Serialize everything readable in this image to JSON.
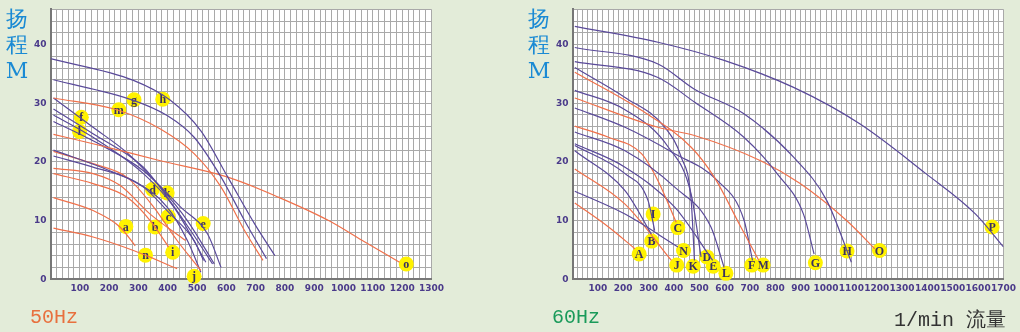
{
  "chart_data": [
    {
      "type": "line",
      "title": "50Hz",
      "ylabel": "扬程M",
      "grid": true,
      "xlim": [
        0,
        1300
      ],
      "ylim": [
        0,
        46
      ],
      "xticks": [
        {
          "value": 0,
          "label": null
        },
        {
          "value": 20,
          "label": null
        },
        {
          "value": 40,
          "label": null
        },
        {
          "value": 60,
          "label": null
        },
        {
          "value": 80,
          "label": null
        },
        100,
        {
          "value": 120,
          "label": null
        },
        {
          "value": 140,
          "label": null
        },
        {
          "value": 160,
          "label": null
        },
        {
          "value": 180,
          "label": null
        },
        200,
        {
          "value": 220,
          "label": null
        },
        {
          "value": 240,
          "label": null
        },
        {
          "value": 260,
          "label": null
        },
        {
          "value": 280,
          "label": null
        },
        300,
        {
          "value": 320,
          "label": null
        },
        {
          "value": 340,
          "label": null
        },
        {
          "value": 360,
          "label": null
        },
        {
          "value": 380,
          "label": null
        },
        400,
        {
          "value": 420,
          "label": null
        },
        {
          "value": 440,
          "label": null
        },
        {
          "value": 460,
          "label": null
        },
        {
          "value": 480,
          "label": null
        },
        500,
        {
          "value": 520,
          "label": null
        },
        {
          "value": 540,
          "label": null
        },
        {
          "value": 560,
          "label": null
        },
        {
          "value": 580,
          "label": null
        },
        600,
        {
          "value": 620,
          "label": null
        },
        {
          "value": 640,
          "label": null
        },
        {
          "value": 660,
          "label": null
        },
        {
          "value": 680,
          "label": null
        },
        700,
        {
          "value": 720,
          "label": null
        },
        {
          "value": 740,
          "label": null
        },
        {
          "value": 760,
          "label": null
        },
        {
          "value": 780,
          "label": null
        },
        800,
        {
          "value": 820,
          "label": null
        },
        {
          "value": 840,
          "label": null
        },
        {
          "value": 860,
          "label": null
        },
        {
          "value": 880,
          "label": null
        },
        900,
        {
          "value": 920,
          "label": null
        },
        {
          "value": 940,
          "label": null
        },
        {
          "value": 960,
          "label": null
        },
        {
          "value": 980,
          "label": null
        },
        1000,
        {
          "value": 1020,
          "label": null
        },
        {
          "value": 1040,
          "label": null
        },
        {
          "value": 1060,
          "label": null
        },
        {
          "value": 1080,
          "label": null
        },
        1100,
        {
          "value": 1120,
          "label": null
        },
        {
          "value": 1140,
          "label": null
        },
        {
          "value": 1160,
          "label": null
        },
        {
          "value": 1180,
          "label": null
        },
        1200,
        {
          "value": 1220,
          "label": null
        },
        {
          "value": 1240,
          "label": null
        },
        {
          "value": 1260,
          "label": null
        },
        {
          "value": 1280,
          "label": null
        },
        1300
      ],
      "yticks": [
        0,
        {
          "value": 2,
          "label": null
        },
        {
          "value": 4,
          "label": null
        },
        {
          "value": 6,
          "label": null
        },
        {
          "value": 8,
          "label": null
        },
        10,
        {
          "value": 12,
          "label": null
        },
        {
          "value": 14,
          "label": null
        },
        {
          "value": 16,
          "label": null
        },
        {
          "value": 18,
          "label": null
        },
        20,
        {
          "value": 22,
          "label": null
        },
        {
          "value": 24,
          "label": null
        },
        {
          "value": 26,
          "label": null
        },
        {
          "value": 28,
          "label": null
        },
        30,
        {
          "value": 32,
          "label": null
        },
        {
          "value": 34,
          "label": null
        },
        {
          "value": 36,
          "label": null
        },
        {
          "value": 38,
          "label": null
        },
        40,
        {
          "value": 42,
          "label": null
        },
        {
          "value": 44,
          "label": null
        },
        {
          "value": 46,
          "label": null
        }
      ],
      "series": [
        {
          "color": "#5a4a9a",
          "x": [
            0,
            283,
            409,
            513,
            605,
            697,
            766
          ],
          "values": [
            37.6,
            33.9,
            30.5,
            25.3,
            17.4,
            9.4,
            4.0
          ]
        },
        {
          "color": "#5a4a9a",
          "x": [
            10,
            283,
            398,
            490,
            582,
            662,
            737
          ],
          "values": [
            34.0,
            30.5,
            27.9,
            24.2,
            17.4,
            10.0,
            3.5
          ]
        },
        {
          "color": "#f0704a",
          "x": [
            10,
            231,
            375,
            490,
            582,
            662,
            725
          ],
          "values": [
            30.9,
            28.8,
            25.6,
            21.4,
            15.7,
            8.3,
            3.2
          ]
        },
        {
          "color": "#f0704a",
          "x": [
            10,
            145,
            375,
            605,
            777,
            949,
            1064,
            1191
          ],
          "values": [
            24.7,
            23.1,
            20.2,
            17.4,
            14.0,
            10.0,
            6.6,
            2.9
          ]
        },
        {
          "color": "#5a4a9a",
          "x": [
            10,
            145,
            260,
            375,
            467,
            559
          ],
          "values": [
            30.9,
            25.9,
            21.6,
            15.7,
            10.0,
            2.6
          ]
        },
        {
          "color": "#5a4a9a",
          "x": [
            10,
            145,
            317,
            398,
            478,
            553
          ],
          "values": [
            29.0,
            24.8,
            19.1,
            14.0,
            8.3,
            2.6
          ]
        },
        {
          "color": "#5a4a9a",
          "x": [
            10,
            145,
            317,
            421,
            530
          ],
          "values": [
            28.0,
            24.2,
            18.0,
            12.3,
            2.9
          ]
        },
        {
          "color": "#5a4a9a",
          "x": [
            10,
            145,
            317,
            444,
            536,
            582
          ],
          "values": [
            26.9,
            23.6,
            18.5,
            12.3,
            7.7,
            2.0
          ]
        },
        {
          "color": "#5a4a9a",
          "x": [
            10,
            202,
            317,
            409,
            490,
            522
          ],
          "values": [
            22.0,
            18.5,
            15.7,
            11.1,
            6.6,
            3.2
          ]
        },
        {
          "color": "#f0704a",
          "x": [
            10,
            145,
            260,
            352,
            432,
            513
          ],
          "values": [
            21.8,
            19.7,
            17.4,
            12.3,
            6.6,
            1.5
          ]
        },
        {
          "color": "#5a4a9a",
          "x": [
            10,
            145,
            283,
            398,
            467,
            513
          ],
          "values": [
            21.0,
            19.1,
            16.8,
            12.3,
            6.6,
            1.2
          ]
        },
        {
          "color": "#f0704a",
          "x": [
            10,
            145,
            237,
            340,
            461
          ],
          "values": [
            18.9,
            18.0,
            16.0,
            11.1,
            6.6
          ]
        },
        {
          "color": "#f0704a",
          "x": [
            10,
            145,
            260,
            340,
            403
          ],
          "values": [
            18.0,
            16.3,
            14.0,
            10.0,
            5.5
          ]
        },
        {
          "color": "#f0704a",
          "x": [
            10,
            145,
            237,
            289
          ],
          "values": [
            13.9,
            11.7,
            8.9,
            5.7
          ]
        },
        {
          "color": "#f0704a",
          "x": [
            10,
            145,
            283,
            432
          ],
          "values": [
            8.7,
            7.2,
            4.9,
            1.8
          ]
        }
      ],
      "annotations": [
        {
          "text": "g",
          "x": 285,
          "y": 30.6
        },
        {
          "text": "h",
          "x": 383,
          "y": 30.7
        },
        {
          "text": "m",
          "x": 233,
          "y": 28.9
        },
        {
          "text": "f",
          "x": 105,
          "y": 27.6
        },
        {
          "text": "l",
          "x": 99,
          "y": 25.2
        },
        {
          "text": "d",
          "x": 348,
          "y": 15.3
        },
        {
          "text": "k",
          "x": 398,
          "y": 14.7
        },
        {
          "text": "c",
          "x": 402,
          "y": 10.7
        },
        {
          "text": "e",
          "x": 521,
          "y": 9.5
        },
        {
          "text": "a",
          "x": 257,
          "y": 9.0
        },
        {
          "text": "b",
          "x": 357,
          "y": 8.9
        },
        {
          "text": "i",
          "x": 417,
          "y": 4.6
        },
        {
          "text": "n",
          "x": 324,
          "y": 4.1
        },
        {
          "text": "j",
          "x": 490,
          "y": 0.5
        },
        {
          "text": "o",
          "x": 1214,
          "y": 2.6
        }
      ]
    },
    {
      "type": "line",
      "title": "60Hz",
      "ylabel": "扬程M",
      "xlabel": "1/min 流量",
      "grid": true,
      "xlim": [
        0,
        1700
      ],
      "ylim": [
        0,
        46
      ],
      "xticks": [
        {
          "value": 0,
          "label": null
        },
        {
          "value": 20,
          "label": null
        },
        {
          "value": 40,
          "label": null
        },
        {
          "value": 60,
          "label": null
        },
        {
          "value": 80,
          "label": null
        },
        100,
        {
          "value": 120,
          "label": null
        },
        {
          "value": 140,
          "label": null
        },
        {
          "value": 160,
          "label": null
        },
        {
          "value": 180,
          "label": null
        },
        200,
        {
          "value": 220,
          "label": null
        },
        {
          "value": 240,
          "label": null
        },
        {
          "value": 260,
          "label": null
        },
        {
          "value": 280,
          "label": null
        },
        300,
        {
          "value": 320,
          "label": null
        },
        {
          "value": 340,
          "label": null
        },
        {
          "value": 360,
          "label": null
        },
        {
          "value": 380,
          "label": null
        },
        400,
        {
          "value": 420,
          "label": null
        },
        {
          "value": 440,
          "label": null
        },
        {
          "value": 460,
          "label": null
        },
        {
          "value": 480,
          "label": null
        },
        500,
        {
          "value": 520,
          "label": null
        },
        {
          "value": 540,
          "label": null
        },
        {
          "value": 560,
          "label": null
        },
        {
          "value": 580,
          "label": null
        },
        600,
        {
          "value": 620,
          "label": null
        },
        {
          "value": 640,
          "label": null
        },
        {
          "value": 660,
          "label": null
        },
        {
          "value": 680,
          "label": null
        },
        700,
        {
          "value": 720,
          "label": null
        },
        {
          "value": 740,
          "label": null
        },
        {
          "value": 760,
          "label": null
        },
        {
          "value": 780,
          "label": null
        },
        800,
        {
          "value": 820,
          "label": null
        },
        {
          "value": 840,
          "label": null
        },
        {
          "value": 860,
          "label": null
        },
        {
          "value": 880,
          "label": null
        },
        900,
        {
          "value": 920,
          "label": null
        },
        {
          "value": 940,
          "label": null
        },
        {
          "value": 960,
          "label": null
        },
        {
          "value": 980,
          "label": null
        },
        1000,
        {
          "value": 1020,
          "label": null
        },
        {
          "value": 1040,
          "label": null
        },
        {
          "value": 1060,
          "label": null
        },
        {
          "value": 1080,
          "label": null
        },
        1100,
        {
          "value": 1120,
          "label": null
        },
        {
          "value": 1140,
          "label": null
        },
        {
          "value": 1160,
          "label": null
        },
        {
          "value": 1180,
          "label": null
        },
        1200,
        {
          "value": 1220,
          "label": null
        },
        {
          "value": 1240,
          "label": null
        },
        {
          "value": 1260,
          "label": null
        },
        {
          "value": 1280,
          "label": null
        },
        1300,
        {
          "value": 1320,
          "label": null
        },
        {
          "value": 1340,
          "label": null
        },
        {
          "value": 1360,
          "label": null
        },
        {
          "value": 1380,
          "label": null
        },
        1400,
        {
          "value": 1420,
          "label": null
        },
        {
          "value": 1440,
          "label": null
        },
        {
          "value": 1460,
          "label": null
        },
        {
          "value": 1480,
          "label": null
        },
        1500,
        {
          "value": 1520,
          "label": null
        },
        {
          "value": 1540,
          "label": null
        },
        {
          "value": 1560,
          "label": null
        },
        {
          "value": 1580,
          "label": null
        },
        1600,
        {
          "value": 1620,
          "label": null
        },
        {
          "value": 1640,
          "label": null
        },
        {
          "value": 1660,
          "label": null
        },
        {
          "value": 1680,
          "label": null
        },
        1700
      ],
      "yticks": [
        0,
        {
          "value": 2,
          "label": null
        },
        {
          "value": 4,
          "label": null
        },
        {
          "value": 6,
          "label": null
        },
        {
          "value": 8,
          "label": null
        },
        10,
        {
          "value": 12,
          "label": null
        },
        {
          "value": 14,
          "label": null
        },
        {
          "value": 16,
          "label": null
        },
        {
          "value": 18,
          "label": null
        },
        20,
        {
          "value": 22,
          "label": null
        },
        {
          "value": 24,
          "label": null
        },
        {
          "value": 26,
          "label": null
        },
        {
          "value": 28,
          "label": null
        },
        30,
        {
          "value": 32,
          "label": null
        },
        {
          "value": 34,
          "label": null
        },
        {
          "value": 36,
          "label": null
        },
        {
          "value": 38,
          "label": null
        },
        40,
        {
          "value": 42,
          "label": null
        },
        {
          "value": 44,
          "label": null
        },
        {
          "value": 46,
          "label": null
        }
      ],
      "series": [
        {
          "color": "#5a4a9a",
          "x": [
            9,
            337,
            598,
            872,
            1133,
            1394,
            1590,
            1700
          ],
          "values": [
            43.1,
            40.4,
            37.3,
            32.7,
            26.5,
            18.0,
            11.1,
            5.5
          ]
        },
        {
          "color": "#5a4a9a",
          "x": [
            9,
            337,
            481,
            676,
            872,
            1003,
            1100
          ],
          "values": [
            39.5,
            36.7,
            32.4,
            28.2,
            20.8,
            13.4,
            2.9
          ]
        },
        {
          "color": "#5a4a9a",
          "x": [
            9,
            337,
            481,
            676,
            807,
            911,
            953
          ],
          "values": [
            37.1,
            34.4,
            30.2,
            24.2,
            18.0,
            11.1,
            4.3
          ]
        },
        {
          "color": "#f0704a",
          "x": [
            9,
            337,
            481,
            742,
            898,
            1081,
            1192
          ],
          "values": [
            30.9,
            25.9,
            24.5,
            20.2,
            16.3,
            10.0,
            5.2
          ]
        },
        {
          "color": "#f0704a",
          "x": [
            9,
            272,
            468,
            559,
            664,
            735
          ],
          "values": [
            35.3,
            28.8,
            22.5,
            17.4,
            8.9,
            3.2
          ]
        },
        {
          "color": "#5a4a9a",
          "x": [
            9,
            207,
            364,
            429,
            468,
            481
          ],
          "values": [
            36.1,
            31.0,
            25.9,
            20.8,
            13.4,
            3.2
          ]
        },
        {
          "color": "#5a4a9a",
          "x": [
            9,
            207,
            378,
            468,
            507
          ],
          "values": [
            32.2,
            28.9,
            22.5,
            14.5,
            3.8
          ]
        },
        {
          "color": "#5a4a9a",
          "x": [
            9,
            207,
            403,
            572,
            677,
            710
          ],
          "values": [
            29.2,
            25.9,
            21.4,
            16.8,
            10.0,
            3.2
          ]
        },
        {
          "color": "#5a4a9a",
          "x": [
            9,
            207,
            403,
            546,
            598
          ],
          "values": [
            25.1,
            21.9,
            15.7,
            8.9,
            2.0
          ]
        },
        {
          "color": "#f0704a",
          "x": [
            9,
            142,
            272,
            337,
            409
          ],
          "values": [
            26.1,
            24.2,
            21.4,
            16.8,
            9.7
          ]
        },
        {
          "color": "#5a4a9a",
          "x": [
            9,
            207,
            403,
            553
          ],
          "values": [
            23.1,
            19.1,
            12.3,
            3.2
          ]
        },
        {
          "color": "#5a4a9a",
          "x": [
            9,
            207,
            298,
            324
          ],
          "values": [
            22.8,
            18.0,
            13.4,
            8.3
          ]
        },
        {
          "color": "#5a4a9a",
          "x": [
            9,
            207,
            311
          ],
          "values": [
            21.9,
            15.1,
            7.7
          ]
        },
        {
          "color": "#5a4a9a",
          "x": [
            9,
            207,
            416
          ],
          "values": [
            15.0,
            11.1,
            5.5
          ]
        },
        {
          "color": "#f0704a",
          "x": [
            9,
            207,
            390
          ],
          "values": [
            18.8,
            12.8,
            3.2
          ]
        },
        {
          "color": "#f0704a",
          "x": [
            9,
            142,
            246
          ],
          "values": [
            13.0,
            8.9,
            5.2
          ]
        }
      ],
      "annotations": [
        {
          "text": "P",
          "x": 1655,
          "y": 8.9
        },
        {
          "text": "H",
          "x": 1083,
          "y": 4.8
        },
        {
          "text": "G",
          "x": 958,
          "y": 2.8
        },
        {
          "text": "O",
          "x": 1211,
          "y": 4.9
        },
        {
          "text": "M",
          "x": 752,
          "y": 2.4
        },
        {
          "text": "F",
          "x": 707,
          "y": 2.4
        },
        {
          "text": "L",
          "x": 605,
          "y": 1.0
        },
        {
          "text": "E",
          "x": 555,
          "y": 2.2
        },
        {
          "text": "D",
          "x": 530,
          "y": 3.8
        },
        {
          "text": "K",
          "x": 476,
          "y": 2.2
        },
        {
          "text": "C",
          "x": 415,
          "y": 8.8
        },
        {
          "text": "I",
          "x": 318,
          "y": 11.1
        },
        {
          "text": "B",
          "x": 312,
          "y": 6.5
        },
        {
          "text": "N",
          "x": 438,
          "y": 4.9
        },
        {
          "text": "J",
          "x": 411,
          "y": 2.4
        },
        {
          "text": "A",
          "x": 263,
          "y": 4.3
        }
      ]
    }
  ]
}
